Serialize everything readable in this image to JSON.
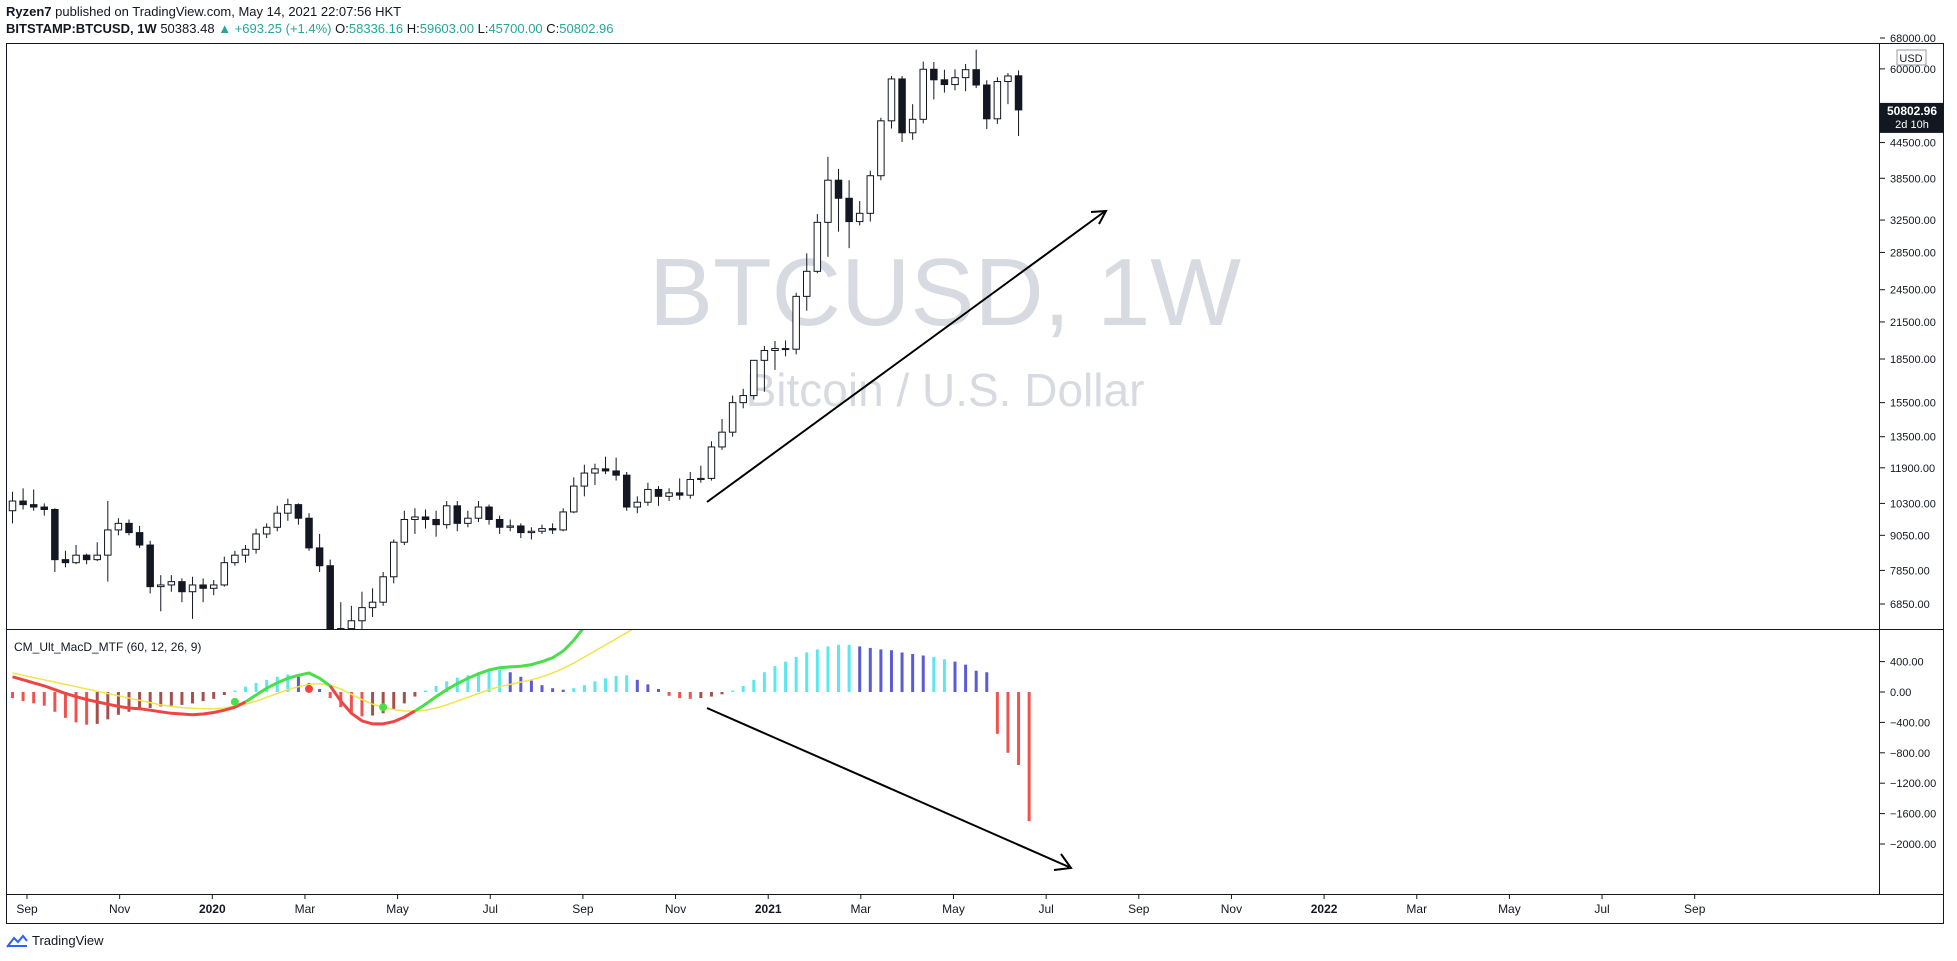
{
  "header": {
    "publisher": "Ryzen7",
    "published_text": "published on TradingView.com, May 14, 2021 22:07:56 HKT",
    "symbol": "BITSTAMP:BTCUSD, 1W",
    "last": "50383.48",
    "change": "▲ +693.25 (+1.4%)",
    "o_label": "O:",
    "o": "58336.16",
    "h_label": "H:",
    "h": "59603.00",
    "l_label": "L:",
    "l": "45700.00",
    "c_label": "C:",
    "c": "50802.96"
  },
  "watermark": {
    "title": "BTCUSD, 1W",
    "subtitle": "Bitcoin / U.S. Dollar"
  },
  "price_axis": {
    "currency": "USD",
    "last_price": "50802.96",
    "countdown": "2d 10h",
    "ticks": [
      "68000.00",
      "60000.00",
      "44500.00",
      "38500.00",
      "32500.00",
      "28500.00",
      "24500.00",
      "21500.00",
      "18500.00",
      "15500.00",
      "13500.00",
      "11900.00",
      "10300.00",
      "9050.00",
      "7850.00",
      "6850.00"
    ]
  },
  "indicator": {
    "label": "CM_Ult_MacD_MTF (60, 12, 26, 9)",
    "ticks": [
      "400.00",
      "0.00",
      "-400.00",
      "-800.00",
      "-1200.00",
      "-1600.00",
      "-2000.00"
    ]
  },
  "time_axis": {
    "labels": [
      {
        "text": "Sep",
        "bold": false
      },
      {
        "text": "Nov",
        "bold": false
      },
      {
        "text": "2020",
        "bold": true
      },
      {
        "text": "Mar",
        "bold": false
      },
      {
        "text": "May",
        "bold": false
      },
      {
        "text": "Jul",
        "bold": false
      },
      {
        "text": "Sep",
        "bold": false
      },
      {
        "text": "Nov",
        "bold": false
      },
      {
        "text": "2021",
        "bold": true
      },
      {
        "text": "Mar",
        "bold": false
      },
      {
        "text": "May",
        "bold": false
      },
      {
        "text": "Jul",
        "bold": false
      },
      {
        "text": "Sep",
        "bold": false
      },
      {
        "text": "Nov",
        "bold": false
      },
      {
        "text": "2022",
        "bold": true
      },
      {
        "text": "Mar",
        "bold": false
      },
      {
        "text": "May",
        "bold": false
      },
      {
        "text": "Jul",
        "bold": false
      },
      {
        "text": "Sep",
        "bold": false
      }
    ]
  },
  "footer": {
    "brand": "TradingView"
  },
  "colors": {
    "bull_candle": "#ffffff",
    "bear_candle": "#131722",
    "hist_red": "#ef5350",
    "hist_darkred": "#a6504c",
    "hist_cyan": "#5ae8ee",
    "hist_blue": "#5b5bd6",
    "macd_red": "#ef4444",
    "macd_green": "#4ade4a",
    "signal_yellow": "#f2e34b",
    "last_price_bg": "#131722"
  },
  "chart_data": [
    {
      "type": "candlestick",
      "title": "BTCUSD, 1W",
      "subtitle": "Bitcoin / U.S. Dollar",
      "x_start": "2019-08-26",
      "x_step": "1 week",
      "y_scale": "log",
      "ylim": [
        6000,
        70000
      ],
      "ohlc": [
        [
          10000,
          10800,
          9500,
          10400
        ],
        [
          10400,
          10950,
          10050,
          10250
        ],
        [
          10250,
          10900,
          10000,
          10150
        ],
        [
          10150,
          10300,
          9800,
          10050
        ],
        [
          10050,
          10100,
          7800,
          8200
        ],
        [
          8200,
          8500,
          7950,
          8100
        ],
        [
          8100,
          8700,
          8050,
          8350
        ],
        [
          8350,
          8400,
          8050,
          8200
        ],
        [
          8200,
          8800,
          8150,
          8350
        ],
        [
          8350,
          10400,
          7500,
          9250
        ],
        [
          9250,
          9700,
          9050,
          9500
        ],
        [
          9500,
          9650,
          9050,
          9150
        ],
        [
          9150,
          9400,
          8600,
          8700
        ],
        [
          8700,
          8850,
          7150,
          7350
        ],
        [
          7350,
          7700,
          6650,
          7400
        ],
        [
          7400,
          7700,
          7200,
          7500
        ],
        [
          7500,
          7600,
          6900,
          7200
        ],
        [
          7200,
          7650,
          6450,
          7400
        ],
        [
          7400,
          7600,
          6900,
          7300
        ],
        [
          7300,
          7550,
          7100,
          7400
        ],
        [
          7400,
          8300,
          7350,
          8100
        ],
        [
          8100,
          8500,
          8000,
          8350
        ],
        [
          8350,
          8700,
          8100,
          8550
        ],
        [
          8550,
          9300,
          8400,
          9100
        ],
        [
          9100,
          9500,
          8950,
          9350
        ],
        [
          9350,
          10200,
          9200,
          9900
        ],
        [
          9900,
          10500,
          9600,
          10250
        ],
        [
          10250,
          10300,
          9450,
          9700
        ],
        [
          9700,
          9900,
          8500,
          8600
        ],
        [
          8600,
          9100,
          7800,
          8000
        ],
        [
          8000,
          8200,
          3900,
          5000
        ],
        [
          5000,
          6900,
          4500,
          6200
        ],
        [
          6200,
          6800,
          5900,
          6400
        ],
        [
          6400,
          7200,
          6000,
          6750
        ],
        [
          6750,
          7300,
          6500,
          6900
        ],
        [
          6900,
          7800,
          6800,
          7650
        ],
        [
          7650,
          8900,
          7450,
          8800
        ],
        [
          8800,
          10000,
          8700,
          9650
        ],
        [
          9650,
          10100,
          9100,
          9750
        ],
        [
          9750,
          10050,
          9300,
          9650
        ],
        [
          9650,
          10000,
          9000,
          9450
        ],
        [
          9450,
          10400,
          9300,
          10200
        ],
        [
          10200,
          10400,
          9200,
          9500
        ],
        [
          9500,
          10000,
          9350,
          9700
        ],
        [
          9700,
          10400,
          9550,
          10150
        ],
        [
          10150,
          10250,
          9450,
          9650
        ],
        [
          9650,
          9800,
          9100,
          9350
        ],
        [
          9350,
          9650,
          9200,
          9400
        ],
        [
          9400,
          9500,
          8950,
          9150
        ],
        [
          9150,
          9350,
          8900,
          9200
        ],
        [
          9200,
          9450,
          9100,
          9300
        ],
        [
          9300,
          9500,
          9100,
          9250
        ],
        [
          9250,
          10100,
          9200,
          9950
        ],
        [
          9950,
          11450,
          9900,
          11050
        ],
        [
          11050,
          12050,
          10600,
          11650
        ],
        [
          11650,
          12100,
          11100,
          11850
        ],
        [
          11850,
          12450,
          11600,
          11750
        ],
        [
          11750,
          12400,
          11300,
          11550
        ],
        [
          11550,
          11700,
          10000,
          10150
        ],
        [
          10150,
          10600,
          9900,
          10350
        ],
        [
          10350,
          11200,
          10200,
          10900
        ],
        [
          10900,
          11050,
          10200,
          10600
        ],
        [
          10600,
          10950,
          10400,
          10750
        ],
        [
          10750,
          11400,
          10450,
          10650
        ],
        [
          10650,
          11700,
          10500,
          11350
        ],
        [
          11350,
          12000,
          11200,
          11400
        ],
        [
          11400,
          13250,
          11300,
          12950
        ],
        [
          12950,
          14500,
          12800,
          13750
        ],
        [
          13750,
          15950,
          13500,
          15500
        ],
        [
          15500,
          16400,
          15150,
          15950
        ],
        [
          15950,
          18400,
          15700,
          18400
        ],
        [
          18400,
          19500,
          16200,
          19150
        ],
        [
          19150,
          19900,
          17700,
          19300
        ],
        [
          19300,
          19950,
          18700,
          19250
        ],
        [
          19250,
          24200,
          18850,
          23850
        ],
        [
          23850,
          28400,
          22500,
          26400
        ],
        [
          26400,
          33300,
          26200,
          32200
        ],
        [
          32200,
          42000,
          28000,
          38200
        ],
        [
          38200,
          40000,
          31000,
          35500
        ],
        [
          35500,
          38200,
          29000,
          32300
        ],
        [
          32300,
          35100,
          31800,
          33400
        ],
        [
          33400,
          39700,
          32300,
          38900
        ],
        [
          38900,
          49200,
          38200,
          48600
        ],
        [
          48600,
          58300,
          47100,
          57600
        ],
        [
          57600,
          58300,
          44600,
          46300
        ],
        [
          46300,
          52000,
          45000,
          48900
        ],
        [
          48900,
          61800,
          48100,
          59900
        ],
        [
          59900,
          61700,
          53000,
          57400
        ],
        [
          57400,
          59800,
          54500,
          56300
        ],
        [
          56300,
          59900,
          55000,
          57900
        ],
        [
          57900,
          61200,
          54800,
          59800
        ],
        [
          59800,
          64850,
          55500,
          56200
        ],
        [
          56200,
          57300,
          47000,
          49000
        ],
        [
          49000,
          58000,
          48000,
          57000
        ],
        [
          57000,
          59000,
          52000,
          58300
        ],
        [
          58336.16,
          59603,
          45700,
          50802.96
        ]
      ]
    },
    {
      "type": "bar",
      "title": "CM_Ult_MacD_MTF (60, 12, 26, 9)",
      "x_start": "2019-08-26",
      "x_step": "1 week",
      "ylim": [
        -2000,
        500
      ],
      "histogram": [
        -80,
        -120,
        -150,
        -180,
        -260,
        -340,
        -400,
        -430,
        -420,
        -360,
        -300,
        -260,
        -230,
        -210,
        -190,
        -180,
        -170,
        -150,
        -120,
        -90,
        -40,
        20,
        70,
        120,
        160,
        200,
        230,
        200,
        120,
        40,
        -80,
        -200,
        -280,
        -320,
        -310,
        -280,
        -230,
        -150,
        -60,
        20,
        80,
        140,
        190,
        220,
        260,
        290,
        290,
        260,
        200,
        150,
        90,
        50,
        30,
        50,
        90,
        140,
        180,
        210,
        220,
        160,
        100,
        40,
        -50,
        -80,
        -90,
        -80,
        -60,
        -30,
        20,
        80,
        160,
        260,
        340,
        400,
        460,
        520,
        560,
        600,
        620,
        620,
        600,
        580,
        560,
        550,
        520,
        500,
        480,
        460,
        430,
        400,
        360,
        280,
        260,
        -550,
        -800,
        -960,
        -1700
      ],
      "hist_color": [
        "red",
        "red",
        "red",
        "red",
        "red",
        "red",
        "red",
        "red",
        "darkred",
        "darkred",
        "darkred",
        "darkred",
        "darkred",
        "darkred",
        "darkred",
        "darkred",
        "darkred",
        "darkred",
        "darkred",
        "darkred",
        "darkred",
        "cyan",
        "cyan",
        "cyan",
        "cyan",
        "cyan",
        "cyan",
        "blue",
        "blue",
        "blue",
        "red",
        "red",
        "red",
        "red",
        "darkred",
        "darkred",
        "darkred",
        "darkred",
        "darkred",
        "cyan",
        "cyan",
        "cyan",
        "cyan",
        "cyan",
        "cyan",
        "cyan",
        "cyan",
        "blue",
        "blue",
        "blue",
        "blue",
        "blue",
        "blue",
        "cyan",
        "cyan",
        "cyan",
        "cyan",
        "cyan",
        "cyan",
        "blue",
        "blue",
        "blue",
        "red",
        "red",
        "red",
        "darkred",
        "darkred",
        "darkred",
        "cyan",
        "cyan",
        "cyan",
        "cyan",
        "cyan",
        "cyan",
        "cyan",
        "cyan",
        "cyan",
        "cyan",
        "cyan",
        "cyan",
        "blue",
        "blue",
        "blue",
        "blue",
        "blue",
        "blue",
        "blue",
        "cyan",
        "cyan",
        "blue",
        "blue",
        "blue",
        "blue",
        "red",
        "red",
        "red",
        "red"
      ],
      "macd_line": [
        200,
        160,
        120,
        80,
        30,
        -20,
        -60,
        -100,
        -130,
        -160,
        -190,
        -210,
        -220,
        -240,
        -260,
        -280,
        -290,
        -300,
        -290,
        -270,
        -240,
        -200,
        -130,
        -40,
        50,
        120,
        180,
        220,
        250,
        180,
        80,
        -120,
        -280,
        -380,
        -420,
        -420,
        -390,
        -330,
        -250,
        -160,
        -60,
        30,
        110,
        180,
        240,
        290,
        320,
        330,
        340,
        360,
        400,
        450,
        540,
        680,
        860,
        1000,
        1120,
        1220,
        1300,
        1360,
        1380,
        1350,
        1300,
        1250,
        1230,
        1240,
        1280,
        1340,
        1420,
        1520,
        1640,
        1800,
        2000,
        2250,
        2550,
        2900,
        3300,
        3600,
        3850,
        4000,
        4150,
        4250,
        4350,
        4450,
        4550,
        4600,
        4650,
        4700,
        4700,
        4700,
        4650,
        4500,
        4350,
        3750,
        3500,
        3150,
        2300
      ],
      "signal_line": [
        250,
        220,
        190,
        160,
        130,
        100,
        70,
        40,
        10,
        -20,
        -50,
        -80,
        -110,
        -140,
        -170,
        -190,
        -205,
        -215,
        -220,
        -220,
        -210,
        -190,
        -160,
        -120,
        -70,
        -20,
        30,
        70,
        100,
        110,
        90,
        40,
        -30,
        -100,
        -160,
        -200,
        -230,
        -250,
        -250,
        -240,
        -210,
        -170,
        -120,
        -70,
        -20,
        30,
        70,
        100,
        130,
        160,
        200,
        250,
        310,
        380,
        460,
        540,
        620,
        700,
        780,
        860,
        920,
        960,
        1000,
        1030,
        1060,
        1090,
        1120,
        1160,
        1200,
        1250,
        1320,
        1400,
        1500,
        1620,
        1760,
        1920,
        2100,
        2280,
        2460,
        2620,
        2780,
        2920,
        3060,
        3180,
        3300,
        3400,
        3500,
        3600,
        3680,
        3750,
        3800,
        3830,
        3850,
        3820,
        3780,
        3700,
        3550
      ],
      "cross_markers": [
        {
          "index": 21,
          "value": -130,
          "color": "green"
        },
        {
          "index": 28,
          "value": 40,
          "color": "red"
        },
        {
          "index": 35,
          "value": -200,
          "color": "green"
        }
      ]
    }
  ]
}
